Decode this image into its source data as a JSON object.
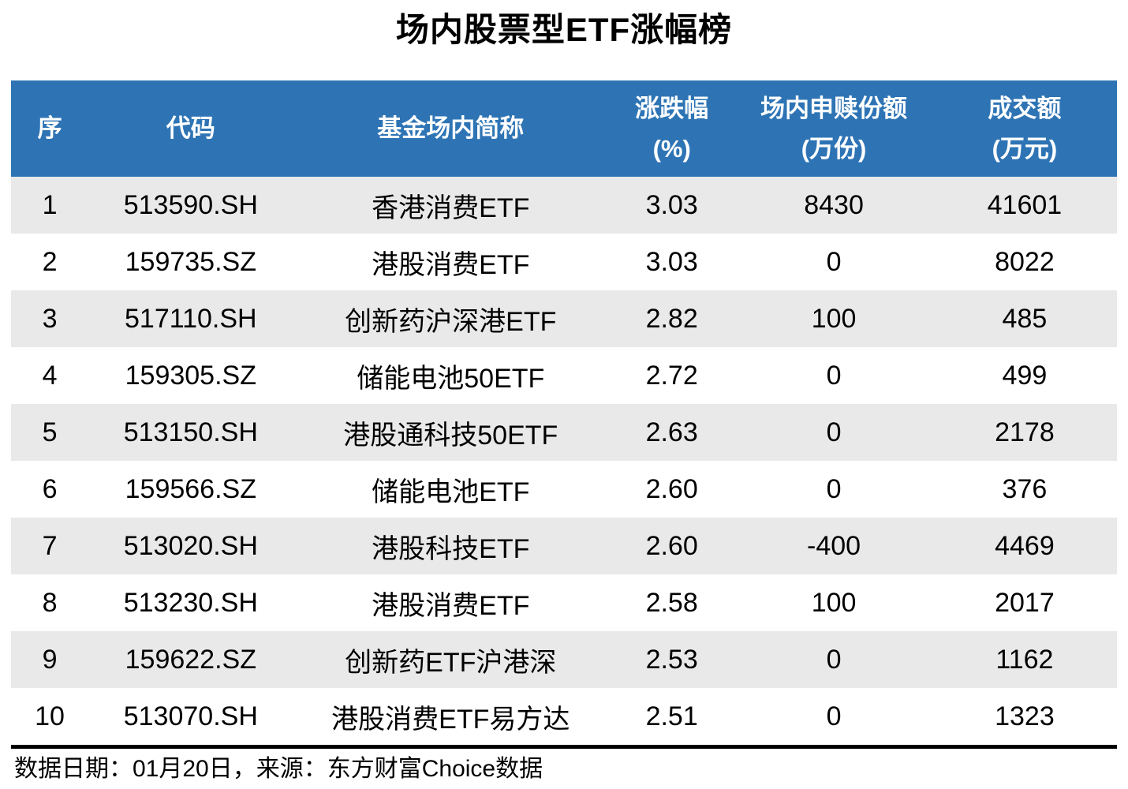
{
  "title": "场内股票型ETF涨幅榜",
  "colors": {
    "header_bg": "#2E74B5",
    "header_text": "#FFFFFF",
    "stripe_bg": "#E9E9E9",
    "body_text": "#000000",
    "rule": "#000000"
  },
  "footer": {
    "note": "数据日期：01月20日，来源：东方财富Choice数据"
  },
  "chart_data": {
    "type": "table",
    "title": "场内股票型ETF涨幅榜",
    "columns": [
      {
        "label": "序",
        "unit": ""
      },
      {
        "label": "代码",
        "unit": ""
      },
      {
        "label": "基金场内简称",
        "unit": ""
      },
      {
        "label": "涨跌幅",
        "unit": "(%)"
      },
      {
        "label": "场内申赎份额",
        "unit": "(万份)"
      },
      {
        "label": "成交额",
        "unit": "(万元)"
      }
    ],
    "rows": [
      [
        "1",
        "513590.SH",
        "香港消费ETF",
        "3.03",
        "8430",
        "41601"
      ],
      [
        "2",
        "159735.SZ",
        "港股消费ETF",
        "3.03",
        "0",
        "8022"
      ],
      [
        "3",
        "517110.SH",
        "创新药沪深港ETF",
        "2.82",
        "100",
        "485"
      ],
      [
        "4",
        "159305.SZ",
        "储能电池50ETF",
        "2.72",
        "0",
        "499"
      ],
      [
        "5",
        "513150.SH",
        "港股通科技50ETF",
        "2.63",
        "0",
        "2178"
      ],
      [
        "6",
        "159566.SZ",
        "储能电池ETF",
        "2.60",
        "0",
        "376"
      ],
      [
        "7",
        "513020.SH",
        "港股科技ETF",
        "2.60",
        "-400",
        "4469"
      ],
      [
        "8",
        "513230.SH",
        "港股消费ETF",
        "2.58",
        "100",
        "2017"
      ],
      [
        "9",
        "159622.SZ",
        "创新药ETF沪港深",
        "2.53",
        "0",
        "1162"
      ],
      [
        "10",
        "513070.SH",
        "港股消费ETF易方达",
        "2.51",
        "0",
        "1323"
      ]
    ],
    "source_note": "数据日期：01月20日，来源：东方财富Choice数据",
    "layout": {
      "banded_rows": true,
      "grid": "off",
      "header_rows": 1
    }
  }
}
